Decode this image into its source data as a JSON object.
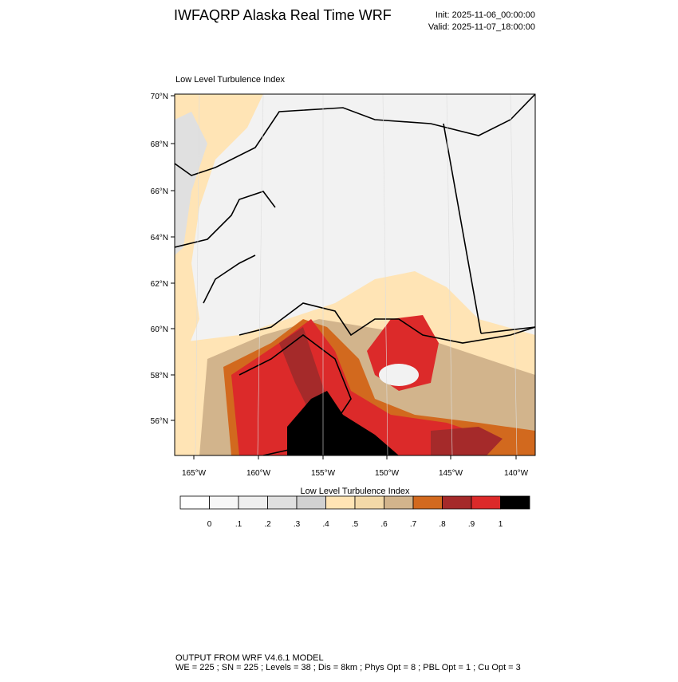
{
  "header": {
    "title": "IWFAQRP Alaska Real Time WRF",
    "init": "Init: 2025-11-06_00:00:00",
    "valid": "Valid: 2025-11-07_18:00:00"
  },
  "map": {
    "title": "Low Level Turbulence Index",
    "lat_labels": [
      "70°N",
      "68°N",
      "66°N",
      "64°N",
      "62°N",
      "60°N",
      "58°N",
      "56°N"
    ],
    "lon_labels": [
      "165°W",
      "160°W",
      "155°W",
      "150°W",
      "145°W",
      "140°W"
    ]
  },
  "colorbar": {
    "title": "Low Level Turbulence Index",
    "colors": [
      "#ffffff",
      "#f7f7f7",
      "#efefef",
      "#e0e0e0",
      "#d1d1d1",
      "#ffe4b5",
      "#f3d9a8",
      "#d2b48c",
      "#d2691e",
      "#a52a2a",
      "#dc2a2a",
      "#000000"
    ],
    "labels": [
      "0",
      ".1",
      ".2",
      ".3",
      ".4",
      ".5",
      ".6",
      ".7",
      ".8",
      ".9",
      "1"
    ]
  },
  "footer": {
    "line1": "OUTPUT FROM WRF V4.6.1 MODEL",
    "line2": "WE = 225 ; SN = 225 ; Levels = 38 ; Dis = 8km ; Phys Opt = 8 ; PBL Opt = 1 ; Cu Opt = 3"
  }
}
